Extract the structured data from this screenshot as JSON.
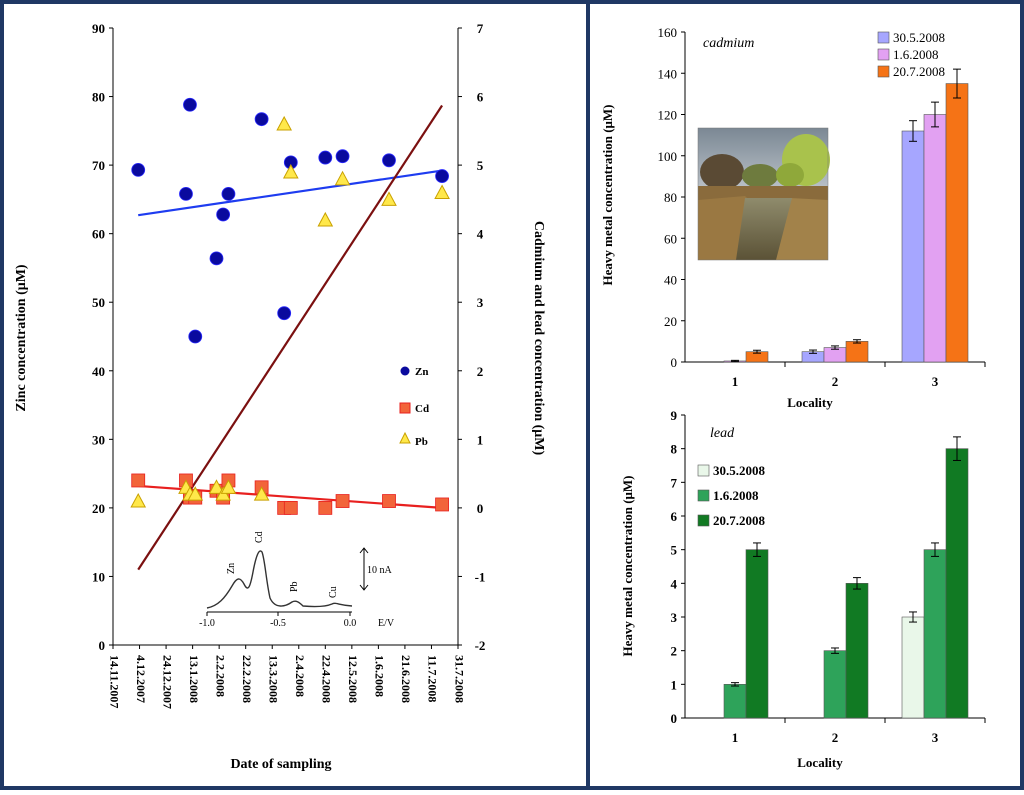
{
  "colors": {
    "frame": "#1f3864",
    "zn": "#0a0a9e",
    "cd": "#f2643a",
    "pb": "#ffe84a",
    "zn_trend": "#1e3cf0",
    "cd_trend": "#e8201f",
    "pb_trend": "#7b1010"
  },
  "chart_data": [
    {
      "type": "scatter",
      "xlabel": "Date of sampling",
      "ylabel": "Zinc concentration (μM)",
      "y2label": "Cadmium and lead concentration (μM)",
      "x_ticks": [
        "14.11.2007",
        "4.12.2007",
        "24.12.2007",
        "13.1.2008",
        "2.2.2008",
        "22.2.2008",
        "13.3.2008",
        "2.4.2008",
        "22.4.2008",
        "12.5.2008",
        "1.6.2008",
        "21.6.2008",
        "11.7.2008",
        "31.7.2008"
      ],
      "xlim": [
        "2007-11-14",
        "2008-07-31"
      ],
      "ylim": [
        0,
        90
      ],
      "y_ticks": [
        0,
        10,
        20,
        30,
        40,
        50,
        60,
        70,
        80,
        90
      ],
      "y2lim": [
        -2,
        7
      ],
      "y2_ticks": [
        -2,
        -1,
        0,
        1,
        2,
        3,
        4,
        5,
        6,
        7
      ],
      "legend": [
        "Zn",
        "Cd",
        "Pb"
      ],
      "series": [
        {
          "name": "Zn",
          "axis": "left",
          "marker": "circle",
          "points": [
            [
              "2007-12-03",
              69.3
            ],
            [
              "2008-01-08",
              65.8
            ],
            [
              "2008-01-11",
              78.8
            ],
            [
              "2008-01-15",
              45.0
            ],
            [
              "2008-01-31",
              56.4
            ],
            [
              "2008-02-05",
              62.8
            ],
            [
              "2008-02-09",
              65.8
            ],
            [
              "2008-03-05",
              76.7
            ],
            [
              "2008-03-22",
              48.4
            ],
            [
              "2008-03-27",
              70.4
            ],
            [
              "2008-04-22",
              71.1
            ],
            [
              "2008-05-05",
              71.3
            ],
            [
              "2008-06-09",
              70.7
            ],
            [
              "2008-07-19",
              68.4
            ]
          ]
        },
        {
          "name": "Cd",
          "axis": "right",
          "marker": "square",
          "points": [
            [
              "2007-12-03",
              0.4
            ],
            [
              "2008-01-08",
              0.4
            ],
            [
              "2008-01-11",
              0.15
            ],
            [
              "2008-01-15",
              0.15
            ],
            [
              "2008-01-31",
              0.25
            ],
            [
              "2008-02-05",
              0.15
            ],
            [
              "2008-02-09",
              0.4
            ],
            [
              "2008-03-05",
              0.3
            ],
            [
              "2008-03-22",
              0.0
            ],
            [
              "2008-03-27",
              0.0
            ],
            [
              "2008-04-22",
              0.0
            ],
            [
              "2008-05-05",
              0.1
            ],
            [
              "2008-06-09",
              0.1
            ],
            [
              "2008-07-19",
              0.05
            ]
          ]
        },
        {
          "name": "Pb",
          "axis": "right",
          "marker": "triangle",
          "points": [
            [
              "2007-12-03",
              0.1
            ],
            [
              "2008-01-08",
              0.3
            ],
            [
              "2008-01-11",
              0.2
            ],
            [
              "2008-01-15",
              0.2
            ],
            [
              "2008-01-31",
              0.3
            ],
            [
              "2008-02-05",
              0.2
            ],
            [
              "2008-02-09",
              0.3
            ],
            [
              "2008-03-05",
              0.2
            ],
            [
              "2008-03-22",
              5.6
            ],
            [
              "2008-03-27",
              4.9
            ],
            [
              "2008-04-22",
              4.2
            ],
            [
              "2008-05-05",
              4.8
            ],
            [
              "2008-06-09",
              4.5
            ],
            [
              "2008-07-19",
              4.6
            ]
          ]
        }
      ],
      "trendlines": [
        {
          "series": "Zn",
          "axis": "left",
          "from": [
            "2007-12-03",
            62.7
          ],
          "to": [
            "2008-07-19",
            69.2
          ]
        },
        {
          "series": "Cd",
          "axis": "right",
          "from": [
            "2007-12-03",
            0.32
          ],
          "to": [
            "2008-07-19",
            0.0
          ]
        },
        {
          "series": "Pb",
          "axis": "right",
          "from": [
            "2007-12-03",
            -0.9
          ],
          "to": [
            "2008-07-19",
            5.87
          ]
        }
      ],
      "inset": {
        "peak_labels": [
          "Zn",
          "Cd",
          "Pb",
          "Cu"
        ],
        "x_ticks": [
          "-1.0",
          "-0.5",
          "0.0"
        ],
        "xlabel": "E/V",
        "scale_label": "10 nA"
      }
    },
    {
      "type": "bar",
      "annotation": "cadmium",
      "ylabel": "Heavy metal concentration (μM)",
      "xlabel": "Locality",
      "categories": [
        "1",
        "2",
        "3"
      ],
      "ylim": [
        0,
        160
      ],
      "y_ticks": [
        0,
        20,
        40,
        60,
        80,
        100,
        120,
        140,
        160
      ],
      "legend_position": "top-right",
      "series": [
        {
          "name": "30.5.2008",
          "color": "#a6a6ff",
          "values": [
            0,
            5,
            112
          ],
          "errors": [
            0,
            0.8,
            5
          ]
        },
        {
          "name": "1.6.2008",
          "color": "#e2a1f2",
          "values": [
            0.5,
            7,
            120
          ],
          "errors": [
            0.3,
            0.8,
            6
          ]
        },
        {
          "name": "20.7.2008",
          "color": "#f57316",
          "values": [
            5,
            10,
            135
          ],
          "errors": [
            0.7,
            0.8,
            7
          ]
        }
      ]
    },
    {
      "type": "bar",
      "annotation": "lead",
      "ylabel": "Heavy metal concentration (μM)",
      "xlabel": "Locality",
      "categories": [
        "1",
        "2",
        "3"
      ],
      "ylim": [
        0,
        9
      ],
      "y_ticks": [
        0,
        1,
        2,
        3,
        4,
        5,
        6,
        7,
        8,
        9
      ],
      "legend_position": "top-left",
      "series": [
        {
          "name": "30.5.2008",
          "color": "#e9f7e9",
          "values": [
            0,
            0,
            3
          ],
          "errors": [
            0,
            0,
            0.15
          ]
        },
        {
          "name": "1.6.2008",
          "color": "#2ea35a",
          "values": [
            1,
            2,
            5
          ],
          "errors": [
            0.05,
            0.08,
            0.2
          ]
        },
        {
          "name": "20.7.2008",
          "color": "#117a23",
          "values": [
            5,
            4,
            8
          ],
          "errors": [
            0.2,
            0.17,
            0.35
          ]
        }
      ]
    }
  ]
}
